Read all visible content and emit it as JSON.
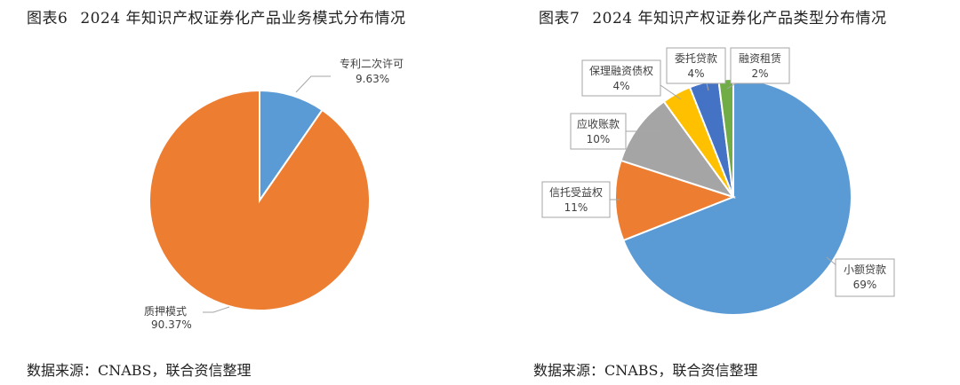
{
  "figures": [
    {
      "number": "图表6",
      "title": "2024 年知识产权证券化产品业务模式分布情况",
      "source": "数据来源：CNABS，联合资信整理"
    },
    {
      "number": "图表7",
      "title": "2024 年知识产权证券化产品类型分布情况",
      "source": "数据来源：CNABS，联合资信整理"
    }
  ],
  "chart_data": [
    {
      "type": "pie",
      "title": "2024 年知识产权证券化产品业务模式分布情况",
      "slices": [
        {
          "name": "专利二次许可",
          "value": 9.63,
          "label": "9.63%",
          "color": "#5b9bd5"
        },
        {
          "name": "质押模式",
          "value": 90.37,
          "label": "90.37%",
          "color": "#ed7d31"
        }
      ]
    },
    {
      "type": "pie",
      "title": "2024 年知识产权证券化产品类型分布情况",
      "slices": [
        {
          "name": "小额贷款",
          "value": 69,
          "label": "69%",
          "color": "#5b9bd5"
        },
        {
          "name": "信托受益权",
          "value": 11,
          "label": "11%",
          "color": "#ed7d31"
        },
        {
          "name": "应收账款",
          "value": 10,
          "label": "10%",
          "color": "#a5a5a5"
        },
        {
          "name": "保理融资债权",
          "value": 4,
          "label": "4%",
          "color": "#ffc000"
        },
        {
          "name": "委托贷款",
          "value": 4,
          "label": "4%",
          "color": "#4472c4"
        },
        {
          "name": "融资租赁",
          "value": 2,
          "label": "2%",
          "color": "#70ad47"
        }
      ]
    }
  ]
}
